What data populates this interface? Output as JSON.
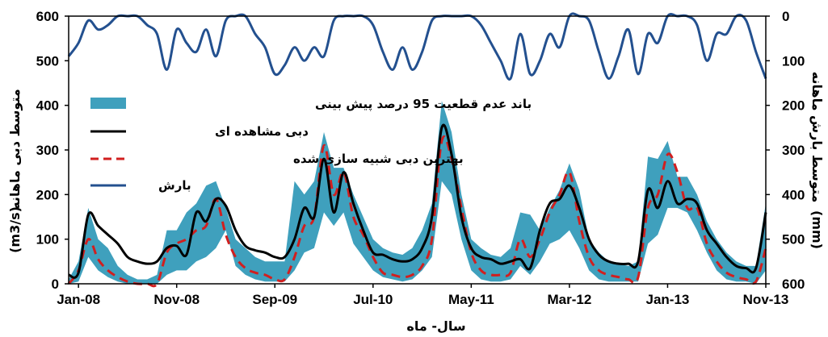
{
  "chart_data": {
    "type": "line",
    "x_ticks": [
      "Jan-08",
      "Nov-08",
      "Sep-09",
      "Jul-10",
      "May-11",
      "Mar-12",
      "Jan-13",
      "Nov-13"
    ],
    "xlabel": "سال- ماه",
    "ylabel_left": "متوسط دبی ماهانه",
    "ylabel_left_unit": "(m3/s)",
    "ylabel_right": "متوسط بارش ماهانه",
    "ylabel_right_unit": "(mm)",
    "ylim_left": [
      0,
      600
    ],
    "yticks_left": [
      0,
      100,
      200,
      300,
      400,
      500,
      600
    ],
    "ylim_right": [
      600,
      0
    ],
    "yticks_right": [
      0,
      100,
      200,
      300,
      400,
      500,
      600
    ],
    "legend": [
      {
        "label": "باند عدم قطعیت 95 درصد پیش بینی",
        "kind": "band",
        "color": "#3fa0bd"
      },
      {
        "label": "دبی مشاهده ای",
        "kind": "line",
        "color": "#000000"
      },
      {
        "label": "بهترین دبی شبیه سازی شده",
        "kind": "dashed",
        "color": "#d11f1f"
      },
      {
        "label": "بارش",
        "kind": "line",
        "color": "#23508f"
      }
    ],
    "months": [
      0,
      1,
      2,
      3,
      4,
      5,
      6,
      7,
      8,
      9,
      10,
      11,
      12,
      13,
      14,
      15,
      16,
      17,
      18,
      19,
      20,
      21,
      22,
      23,
      24,
      25,
      26,
      27,
      28,
      29,
      30,
      31,
      32,
      33,
      34,
      35,
      36,
      37,
      38,
      39,
      40,
      41,
      42,
      43,
      44,
      45,
      46,
      47,
      48,
      49,
      50,
      51,
      52,
      53,
      54,
      55,
      56,
      57,
      58,
      59,
      60,
      61,
      62,
      63,
      64,
      65,
      66,
      67,
      68,
      69,
      70,
      71
    ],
    "series": [
      {
        "name": "دبی مشاهده ای",
        "color": "#000000",
        "values": [
          20,
          25,
          155,
          130,
          110,
          90,
          60,
          50,
          45,
          50,
          80,
          85,
          65,
          160,
          140,
          190,
          175,
          120,
          85,
          75,
          70,
          60,
          60,
          100,
          170,
          150,
          280,
          160,
          250,
          180,
          120,
          70,
          65,
          55,
          50,
          55,
          80,
          150,
          350,
          290,
          150,
          80,
          60,
          55,
          45,
          50,
          55,
          35,
          120,
          180,
          190,
          220,
          170,
          100,
          65,
          50,
          45,
          45,
          50,
          210,
          170,
          230,
          180,
          190,
          180,
          120,
          90,
          60,
          40,
          35,
          35,
          160
        ]
      },
      {
        "name": "بهترین دبی شبیه سازی شده",
        "color": "#d11f1f",
        "values": [
          0,
          30,
          100,
          55,
          30,
          15,
          5,
          0,
          0,
          0,
          70,
          90,
          100,
          120,
          130,
          190,
          110,
          60,
          35,
          25,
          20,
          10,
          10,
          60,
          130,
          150,
          310,
          200,
          250,
          150,
          110,
          60,
          25,
          20,
          15,
          20,
          40,
          100,
          320,
          280,
          170,
          70,
          30,
          20,
          20,
          25,
          100,
          60,
          100,
          160,
          200,
          250,
          140,
          60,
          30,
          20,
          15,
          10,
          15,
          170,
          200,
          290,
          250,
          170,
          170,
          90,
          50,
          25,
          15,
          10,
          5,
          80
        ]
      },
      {
        "name": "بارش",
        "color": "#23508f",
        "axis": "right",
        "values": [
          90,
          60,
          10,
          30,
          20,
          0,
          0,
          0,
          20,
          40,
          120,
          30,
          60,
          80,
          30,
          90,
          10,
          0,
          0,
          40,
          70,
          130,
          110,
          70,
          100,
          70,
          90,
          10,
          0,
          0,
          0,
          20,
          80,
          120,
          70,
          120,
          80,
          10,
          0,
          0,
          0,
          0,
          20,
          60,
          100,
          140,
          40,
          130,
          100,
          40,
          70,
          0,
          0,
          10,
          80,
          140,
          90,
          30,
          130,
          40,
          60,
          0,
          0,
          0,
          20,
          100,
          40,
          40,
          0,
          10,
          80,
          140
        ]
      }
    ],
    "band": {
      "name": "باند عدم قطعیت 95 درصد پیش بینی",
      "color": "#3fa0bd",
      "upper": [
        10,
        50,
        170,
        100,
        80,
        40,
        20,
        10,
        10,
        20,
        120,
        120,
        160,
        180,
        220,
        230,
        170,
        100,
        80,
        60,
        50,
        50,
        50,
        230,
        200,
        230,
        340,
        260,
        260,
        200,
        150,
        100,
        80,
        70,
        65,
        80,
        120,
        180,
        410,
        340,
        200,
        100,
        80,
        65,
        60,
        80,
        160,
        155,
        120,
        170,
        210,
        270,
        210,
        100,
        70,
        50,
        45,
        40,
        50,
        285,
        280,
        320,
        240,
        240,
        200,
        140,
        100,
        70,
        50,
        40,
        40,
        180
      ],
      "lower": [
        0,
        5,
        60,
        30,
        15,
        5,
        0,
        0,
        0,
        0,
        20,
        30,
        30,
        50,
        60,
        80,
        120,
        40,
        20,
        10,
        5,
        5,
        5,
        30,
        70,
        80,
        160,
        130,
        160,
        90,
        60,
        30,
        15,
        10,
        5,
        10,
        30,
        60,
        230,
        200,
        100,
        30,
        10,
        5,
        5,
        10,
        40,
        20,
        50,
        90,
        100,
        120,
        80,
        30,
        10,
        5,
        5,
        5,
        5,
        90,
        110,
        170,
        170,
        160,
        120,
        70,
        30,
        10,
        5,
        5,
        0,
        30
      ]
    }
  }
}
